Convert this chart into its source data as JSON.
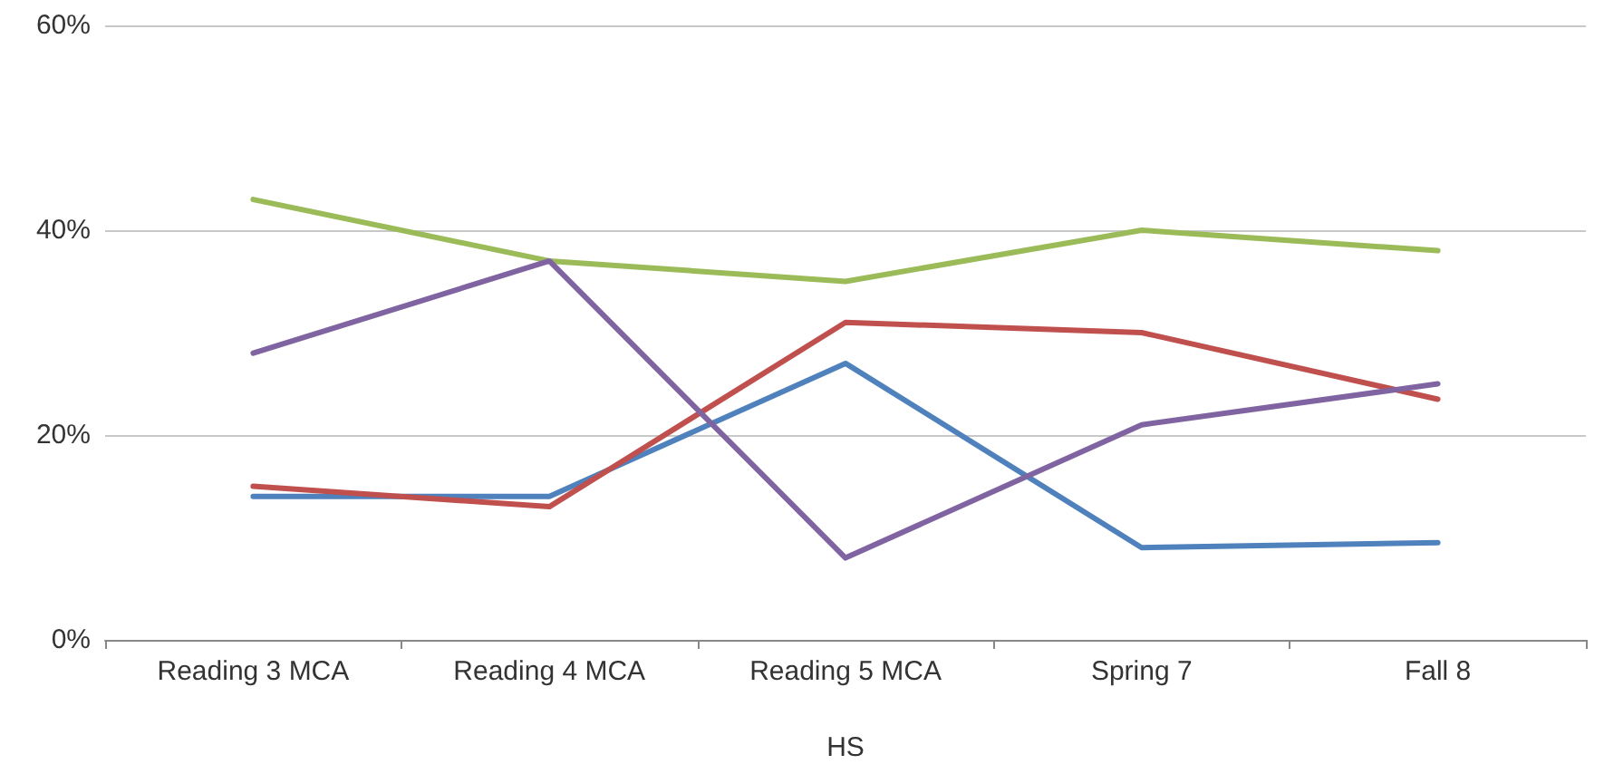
{
  "chart_data": {
    "type": "line",
    "xlabel": "HS",
    "categories": [
      "Reading 3 MCA",
      "Reading 4 MCA",
      "Reading 5 MCA",
      "Spring 7",
      "Fall 8"
    ],
    "series": [
      {
        "color": "#4f81bd",
        "values": [
          14,
          14,
          27,
          9,
          9.5
        ]
      },
      {
        "color": "#c0504d",
        "values": [
          15,
          13,
          31,
          30,
          23.5
        ]
      },
      {
        "color": "#9bbb59",
        "values": [
          43,
          37,
          35,
          40,
          38
        ]
      },
      {
        "color": "#8064a2",
        "values": [
          28,
          37,
          8,
          21,
          25
        ]
      }
    ],
    "ylim": [
      0,
      60
    ],
    "yticks": [
      {
        "value": 0,
        "label": "0%"
      },
      {
        "value": 20,
        "label": "20%"
      },
      {
        "value": 40,
        "label": "40%"
      },
      {
        "value": 60,
        "label": "60%"
      }
    ],
    "grid": "y",
    "marker": "none",
    "line_style": "solid"
  }
}
